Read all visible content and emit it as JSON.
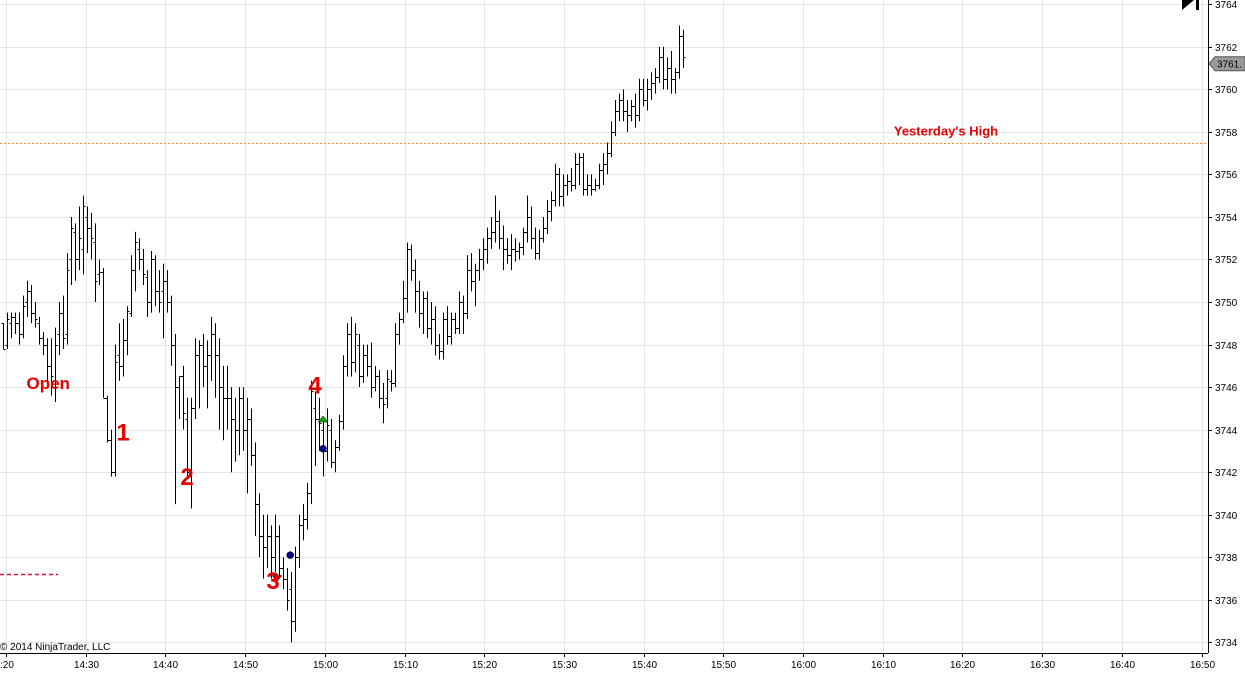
{
  "chart_data": {
    "type": "ohlc",
    "title": "",
    "copyright": "© 2014 NinjaTrader, LLC",
    "x_tick_labels": [
      ":20",
      "14:30",
      "14:40",
      "14:50",
      "15:00",
      "15:10",
      "15:20",
      "15:30",
      "15:40",
      "15:50",
      "16:00",
      "16:10",
      "16:20",
      "16:30",
      "16:40",
      "16:50"
    ],
    "y_tick_labels": [
      "3734",
      "3736",
      "3738",
      "3740",
      "3742",
      "3744",
      "3746",
      "3748",
      "3750",
      "3752",
      "3754",
      "3756",
      "3758",
      "3760",
      "3762",
      "3764"
    ],
    "ylim": [
      3733.5,
      3764.2
    ],
    "grid": true,
    "last_price_label": "3761.",
    "bar_color": "#000000",
    "reference_line": {
      "label": "Yesterday's High",
      "value": 3757.5,
      "color": "#f28c28"
    },
    "bars_ohlc": [
      [
        3749.0,
        3749.0,
        3747.8,
        3747.8
      ],
      [
        3748.0,
        3749.5,
        3747.8,
        3749.2
      ],
      [
        3749.0,
        3749.5,
        3748.3,
        3749.3
      ],
      [
        3749.3,
        3749.5,
        3748.5,
        3749.0
      ],
      [
        3749.0,
        3749.5,
        3748.0,
        3748.5
      ],
      [
        3748.5,
        3750.3,
        3748.3,
        3749.8
      ],
      [
        3750.0,
        3751.0,
        3749.3,
        3750.5
      ],
      [
        3750.5,
        3750.8,
        3749.0,
        3749.5
      ],
      [
        3749.5,
        3750.0,
        3748.8,
        3749.2
      ],
      [
        3749.0,
        3749.3,
        3748.0,
        3748.3
      ],
      [
        3748.3,
        3748.6,
        3747.5,
        3748.0
      ],
      [
        3748.0,
        3748.3,
        3746.3,
        3747.0
      ],
      [
        3747.0,
        3748.3,
        3745.6,
        3746.5
      ],
      [
        3746.0,
        3748.8,
        3745.3,
        3748.0
      ],
      [
        3748.5,
        3750.0,
        3747.5,
        3749.5
      ],
      [
        3749.5,
        3750.3,
        3747.8,
        3748.3
      ],
      [
        3748.5,
        3752.3,
        3748.0,
        3751.5
      ],
      [
        3752.0,
        3754.0,
        3750.8,
        3753.5
      ],
      [
        3753.3,
        3753.7,
        3751.0,
        3752.0
      ],
      [
        3752.0,
        3754.5,
        3751.5,
        3753.0
      ],
      [
        3752.5,
        3755.0,
        3751.3,
        3754.5
      ],
      [
        3754.0,
        3754.5,
        3752.3,
        3753.5
      ],
      [
        3753.5,
        3754.2,
        3752.0,
        3753.0
      ],
      [
        3752.8,
        3753.7,
        3750.0,
        3751.0
      ],
      [
        3751.3,
        3752.0,
        3750.8,
        3751.4
      ],
      [
        3751.4,
        3751.6,
        3745.5,
        3745.5
      ],
      [
        3745.5,
        3745.6,
        3743.4,
        3743.5
      ],
      [
        3743.5,
        3744.0,
        3741.8,
        3742.0
      ],
      [
        3742.0,
        3748.0,
        3741.8,
        3747.2
      ],
      [
        3747.5,
        3749.0,
        3746.3,
        3747.0
      ],
      [
        3747.0,
        3749.2,
        3746.5,
        3748.2
      ],
      [
        3748.2,
        3749.8,
        3747.5,
        3749.6
      ],
      [
        3749.5,
        3752.2,
        3749.3,
        3751.5
      ],
      [
        3751.5,
        3753.3,
        3750.5,
        3752.8
      ],
      [
        3752.5,
        3753.0,
        3751.5,
        3752.0
      ],
      [
        3752.0,
        3752.5,
        3750.8,
        3751.3
      ],
      [
        3751.2,
        3751.5,
        3749.3,
        3750.0
      ],
      [
        3750.0,
        3752.4,
        3749.5,
        3752.0
      ],
      [
        3752.0,
        3752.2,
        3749.8,
        3750.5
      ],
      [
        3750.5,
        3751.5,
        3749.5,
        3750.0
      ],
      [
        3750.5,
        3751.8,
        3748.3,
        3751.0
      ],
      [
        3751.0,
        3751.5,
        3749.5,
        3750.0
      ],
      [
        3750.0,
        3750.3,
        3747.0,
        3748.0
      ],
      [
        3748.0,
        3748.5,
        3740.5,
        3746.0
      ],
      [
        3746.0,
        3746.5,
        3744.5,
        3746.5
      ],
      [
        3746.5,
        3747.0,
        3744.0,
        3744.8
      ],
      [
        3744.5,
        3745.5,
        3741.8,
        3742.0
      ],
      [
        3742.0,
        3745.5,
        3740.3,
        3745.0
      ],
      [
        3745.0,
        3748.3,
        3744.5,
        3747.5
      ],
      [
        3747.5,
        3748.2,
        3745.0,
        3748.0
      ],
      [
        3748.0,
        3748.5,
        3746.0,
        3747.0
      ],
      [
        3747.0,
        3748.2,
        3745.0,
        3747.5
      ],
      [
        3747.5,
        3749.3,
        3746.3,
        3748.5
      ],
      [
        3748.5,
        3749.0,
        3745.5,
        3747.5
      ],
      [
        3747.5,
        3748.3,
        3744.0,
        3746.0
      ],
      [
        3746.0,
        3747.0,
        3743.5,
        3745.5
      ],
      [
        3745.5,
        3747.0,
        3744.0,
        3745.5
      ],
      [
        3745.5,
        3746.0,
        3742.0,
        3744.5
      ],
      [
        3744.5,
        3745.5,
        3742.5,
        3744.0
      ],
      [
        3744.0,
        3746.0,
        3742.8,
        3745.5
      ],
      [
        3745.5,
        3746.0,
        3743.0,
        3744.0
      ],
      [
        3744.0,
        3745.5,
        3741.0,
        3744.5
      ],
      [
        3744.5,
        3745.0,
        3742.3,
        3742.8
      ],
      [
        3742.8,
        3743.4,
        3739.0,
        3740.5
      ],
      [
        3740.5,
        3741.0,
        3738.0,
        3739.0
      ],
      [
        3739.0,
        3740.0,
        3737.0,
        3738.5
      ],
      [
        3738.5,
        3740.0,
        3737.5,
        3739.0
      ],
      [
        3739.0,
        3739.5,
        3737.0,
        3738.0
      ],
      [
        3738.0,
        3740.0,
        3737.3,
        3739.0
      ],
      [
        3739.0,
        3739.5,
        3737.0,
        3737.5
      ],
      [
        3737.5,
        3738.0,
        3736.5,
        3737.0
      ],
      [
        3737.0,
        3737.5,
        3735.5,
        3736.0
      ],
      [
        3736.5,
        3737.3,
        3734.0,
        3735.0
      ],
      [
        3735.0,
        3738.5,
        3734.5,
        3738.0
      ],
      [
        3738.0,
        3740.0,
        3737.5,
        3739.5
      ],
      [
        3739.5,
        3740.5,
        3738.8,
        3739.8
      ],
      [
        3739.8,
        3741.5,
        3739.3,
        3741.0
      ],
      [
        3741.0,
        3746.3,
        3740.5,
        3745.8
      ],
      [
        3745.0,
        3745.8,
        3742.3,
        3744.5
      ],
      [
        3744.5,
        3745.5,
        3743.0,
        3744.3
      ],
      [
        3744.0,
        3744.5,
        3741.8,
        3743.0
      ],
      [
        3743.0,
        3745.0,
        3742.5,
        3744.2
      ],
      [
        3744.0,
        3744.5,
        3742.2,
        3742.5
      ],
      [
        3742.5,
        3743.5,
        3742.0,
        3743.2
      ],
      [
        3743.2,
        3744.7,
        3743.0,
        3744.4
      ],
      [
        3744.4,
        3747.5,
        3744.0,
        3747.0
      ],
      [
        3747.0,
        3749.0,
        3746.5,
        3748.5
      ],
      [
        3748.5,
        3749.3,
        3746.5,
        3747.2
      ],
      [
        3747.2,
        3749.0,
        3746.7,
        3748.5
      ],
      [
        3748.0,
        3748.5,
        3746.0,
        3746.5
      ],
      [
        3746.5,
        3748.0,
        3746.2,
        3747.5
      ],
      [
        3747.5,
        3748.0,
        3746.5,
        3747.0
      ],
      [
        3747.0,
        3748.1,
        3745.5,
        3746.0
      ],
      [
        3746.0,
        3747.0,
        3745.8,
        3746.5
      ],
      [
        3746.5,
        3746.8,
        3745.0,
        3745.5
      ],
      [
        3745.5,
        3746.2,
        3744.3,
        3745.2
      ],
      [
        3745.5,
        3746.8,
        3745.0,
        3746.4
      ],
      [
        3746.3,
        3746.8,
        3745.8,
        3746.2
      ],
      [
        3746.2,
        3749.0,
        3746.0,
        3748.5
      ],
      [
        3748.5,
        3749.5,
        3748.0,
        3749.2
      ],
      [
        3749.2,
        3751.0,
        3749.0,
        3750.2
      ],
      [
        3750.2,
        3752.8,
        3749.5,
        3752.5
      ],
      [
        3752.5,
        3752.7,
        3751.0,
        3751.5
      ],
      [
        3751.5,
        3752.0,
        3749.5,
        3750.5
      ],
      [
        3750.5,
        3751.0,
        3748.8,
        3749.5
      ],
      [
        3749.5,
        3750.5,
        3748.5,
        3750.2
      ],
      [
        3750.2,
        3750.5,
        3748.3,
        3748.8
      ],
      [
        3748.8,
        3750.0,
        3748.0,
        3749.2
      ],
      [
        3749.2,
        3749.8,
        3747.5,
        3748.0
      ],
      [
        3748.0,
        3748.5,
        3747.3,
        3747.7
      ],
      [
        3747.7,
        3749.5,
        3747.3,
        3749.2
      ],
      [
        3749.2,
        3749.8,
        3748.0,
        3748.4
      ],
      [
        3748.4,
        3749.5,
        3748.0,
        3749.2
      ],
      [
        3749.2,
        3749.5,
        3748.5,
        3748.8
      ],
      [
        3748.8,
        3750.5,
        3748.5,
        3750.0
      ],
      [
        3750.0,
        3750.3,
        3748.5,
        3749.5
      ],
      [
        3749.5,
        3752.2,
        3749.2,
        3751.5
      ],
      [
        3751.5,
        3752.3,
        3750.5,
        3751.0
      ],
      [
        3751.0,
        3751.8,
        3749.8,
        3751.5
      ],
      [
        3751.5,
        3752.5,
        3751.0,
        3752.0
      ],
      [
        3752.0,
        3753.0,
        3751.5,
        3752.5
      ],
      [
        3752.5,
        3753.5,
        3751.8,
        3753.0
      ],
      [
        3753.0,
        3754.0,
        3752.5,
        3753.3
      ],
      [
        3753.3,
        3755.0,
        3752.8,
        3753.8
      ],
      [
        3753.8,
        3754.3,
        3752.5,
        3753.0
      ],
      [
        3753.0,
        3753.6,
        3751.5,
        3752.5
      ],
      [
        3752.5,
        3753.0,
        3751.8,
        3752.2
      ],
      [
        3752.2,
        3753.2,
        3751.5,
        3752.5
      ],
      [
        3752.5,
        3753.0,
        3751.9,
        3752.4
      ],
      [
        3752.4,
        3752.8,
        3752.0,
        3752.6
      ],
      [
        3752.6,
        3753.5,
        3752.2,
        3753.3
      ],
      [
        3753.3,
        3755.0,
        3752.8,
        3754.0
      ],
      [
        3754.0,
        3754.5,
        3752.5,
        3753.0
      ],
      [
        3753.0,
        3753.5,
        3752.0,
        3752.3
      ],
      [
        3752.3,
        3753.4,
        3752.0,
        3753.0
      ],
      [
        3753.0,
        3754.0,
        3752.8,
        3753.5
      ],
      [
        3753.5,
        3754.8,
        3753.2,
        3754.3
      ],
      [
        3754.3,
        3755.2,
        3753.8,
        3754.8
      ],
      [
        3754.8,
        3756.5,
        3754.5,
        3756.0
      ],
      [
        3756.0,
        3756.3,
        3754.5,
        3755.0
      ],
      [
        3755.0,
        3756.0,
        3754.5,
        3755.5
      ],
      [
        3755.5,
        3756.0,
        3755.0,
        3755.7
      ],
      [
        3755.7,
        3756.3,
        3755.2,
        3755.5
      ],
      [
        3755.5,
        3757.0,
        3755.3,
        3756.5
      ],
      [
        3756.5,
        3757.0,
        3755.5,
        3756.8
      ],
      [
        3756.8,
        3757.0,
        3755.0,
        3755.3
      ],
      [
        3755.3,
        3756.0,
        3755.0,
        3755.5
      ],
      [
        3755.5,
        3756.0,
        3755.0,
        3755.3
      ],
      [
        3755.3,
        3755.8,
        3755.2,
        3755.5
      ],
      [
        3755.5,
        3756.5,
        3755.3,
        3756.2
      ],
      [
        3756.2,
        3757.0,
        3755.5,
        3756.5
      ],
      [
        3756.5,
        3757.5,
        3756.0,
        3757.0
      ],
      [
        3757.0,
        3758.5,
        3756.8,
        3758.0
      ],
      [
        3758.0,
        3759.5,
        3757.8,
        3759.0
      ],
      [
        3759.0,
        3759.8,
        3758.5,
        3759.5
      ],
      [
        3759.5,
        3760.0,
        3758.5,
        3759.0
      ],
      [
        3759.0,
        3759.5,
        3758.0,
        3758.8
      ],
      [
        3758.8,
        3759.5,
        3758.5,
        3759.2
      ],
      [
        3759.2,
        3759.8,
        3758.2,
        3758.8
      ],
      [
        3758.8,
        3760.5,
        3758.5,
        3760.0
      ],
      [
        3760.0,
        3760.5,
        3759.2,
        3759.5
      ],
      [
        3759.5,
        3760.5,
        3759.0,
        3760.0
      ],
      [
        3760.0,
        3760.8,
        3759.5,
        3760.3
      ],
      [
        3760.3,
        3761.0,
        3759.8,
        3760.6
      ],
      [
        3760.6,
        3762.0,
        3760.3,
        3761.5
      ],
      [
        3761.5,
        3762.0,
        3760.0,
        3760.5
      ],
      [
        3760.5,
        3761.5,
        3760.0,
        3761.0
      ],
      [
        3761.0,
        3761.8,
        3759.8,
        3760.5
      ],
      [
        3760.5,
        3761.0,
        3759.8,
        3760.8
      ],
      [
        3760.8,
        3763.0,
        3760.5,
        3762.5
      ],
      [
        3762.5,
        3762.8,
        3761.0,
        3761.5
      ]
    ],
    "annotations": [
      {
        "label": "Open",
        "x_bar": 11.3,
        "y": 3745.9,
        "size": "small"
      },
      {
        "label": "1",
        "x_bar": 30,
        "y": 3743.5,
        "size": "large"
      },
      {
        "label": "2",
        "x_bar": 46,
        "y": 3741.4,
        "size": "large"
      },
      {
        "label": "3",
        "x_bar": 67.5,
        "y": 3736.5,
        "size": "large"
      },
      {
        "label": "4",
        "x_bar": 78,
        "y": 3745.7,
        "size": "large"
      }
    ],
    "markers": [
      {
        "type": "sell-triangle",
        "x_bar": 68.5,
        "y": 3737.0,
        "color": "#cc0000"
      },
      {
        "type": "buy-triangle",
        "x_bar": 80,
        "y": 3744.5,
        "color": "#00aa00"
      },
      {
        "type": "dot",
        "x_bar": 71.8,
        "y": 3738.1,
        "color": "#00008b"
      },
      {
        "type": "dot",
        "x_bar": 80,
        "y": 3743.1,
        "color": "#00008b"
      }
    ],
    "dashed_marker": {
      "color": "#e0103a"
    }
  }
}
